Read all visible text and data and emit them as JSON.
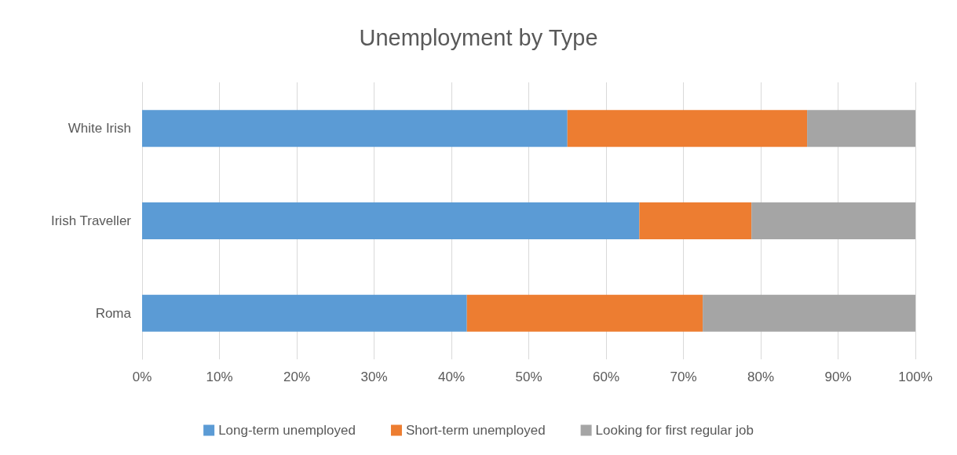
{
  "chart_data": {
    "type": "bar",
    "title": "Unemployment by Type",
    "orientation": "horizontal",
    "stacked": true,
    "categories": [
      "White Irish",
      "Irish Traveller",
      "Roma"
    ],
    "series": [
      {
        "name": "Long-term unemployed",
        "color": "#5b9bd5",
        "values": [
          55,
          64.3,
          42
        ]
      },
      {
        "name": "Short-term unemployed",
        "color": "#ed7d31",
        "values": [
          31,
          14.5,
          30.5
        ]
      },
      {
        "name": "Looking for first regular job",
        "color": "#a5a5a5",
        "values": [
          14,
          21.2,
          27.5
        ]
      }
    ],
    "xlim": [
      0,
      100
    ],
    "xticks": [
      {
        "value": 0,
        "label": "0%"
      },
      {
        "value": 10,
        "label": "10%"
      },
      {
        "value": 20,
        "label": "20%"
      },
      {
        "value": 30,
        "label": "30%"
      },
      {
        "value": 40,
        "label": "40%"
      },
      {
        "value": 50,
        "label": "50%"
      },
      {
        "value": 60,
        "label": "60%"
      },
      {
        "value": 70,
        "label": "70%"
      },
      {
        "value": 80,
        "label": "80%"
      },
      {
        "value": 90,
        "label": "90%"
      },
      {
        "value": 100,
        "label": "100%"
      }
    ],
    "grid": "x",
    "legend": "bottom"
  }
}
